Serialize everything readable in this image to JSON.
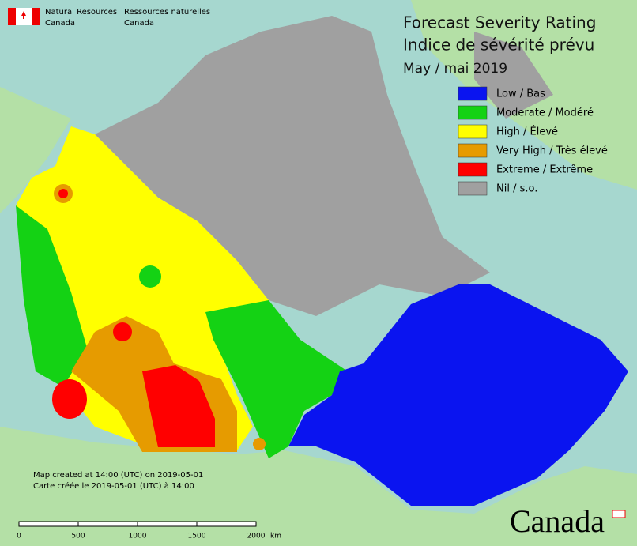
{
  "header": {
    "name_en": [
      "Natural Resources",
      "Canada"
    ],
    "name_fr": [
      "Ressources naturelles",
      "Canada"
    ]
  },
  "title": [
    "Forecast Severity Rating",
    "Indice de sévérité prévu"
  ],
  "subtitle": "May / mai 2019",
  "legend": [
    {
      "label": "Low / Bas",
      "color": "#0a14f0"
    },
    {
      "label": "Moderate / Modéré",
      "color": "#14d214"
    },
    {
      "label": "High / Élevé",
      "color": "#ffff00"
    },
    {
      "label": "Very High / Très élevé",
      "color": "#e69b00"
    },
    {
      "label": "Extreme / Extrême",
      "color": "#ff0000"
    },
    {
      "label": "Nil / s.o.",
      "color": "#a0a0a0"
    }
  ],
  "notes": [
    "Map created at 14:00 (UTC) on 2019-05-01",
    "Carte créée le 2019-05-01 (UTC) à 14:00"
  ],
  "scale": {
    "ticks": [
      0,
      500,
      1000,
      1500,
      2000
    ],
    "unit": "km"
  },
  "wordmark": "Canada"
}
